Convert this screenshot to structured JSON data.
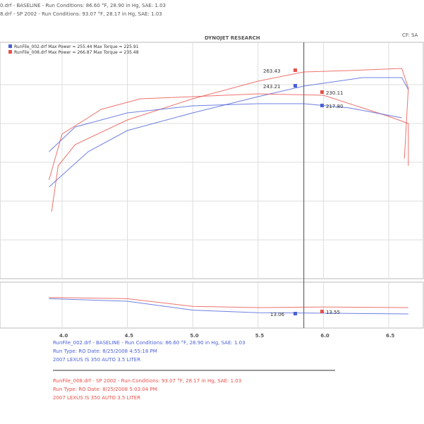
{
  "header": {
    "line1": "0.drf - BASELINE  -  Run Conditions: 86.60 °F, 28.90 in Hg, SAE: 1.03",
    "line2": "8.drf - SP 2002  -  Run Conditions: 93.07 °F, 28.17 in Hg, SAE: 1.03",
    "title": "DYNOJET RESEARCH",
    "corner": "CF: SA"
  },
  "chart_data": {
    "type": "line",
    "title": "DYNOJET RESEARCH",
    "xlabel": "",
    "ylabel": "",
    "x_ticks": [
      "4.0",
      "4.5",
      "5.0",
      "5.5",
      "6.0",
      "6.5"
    ],
    "xlim": [
      3.85,
      6.7
    ],
    "grid": true,
    "cursor_rpm": 5.85,
    "legend": [
      {
        "text": "RunFile_002.drf Max Power = 255.44    Max Torque = 225.91",
        "color": "#4a60d8"
      },
      {
        "text": "RunFile_008.drf Max Power = 266.87    Max Torque = 235.48",
        "color": "#e8504a"
      }
    ],
    "series": [
      {
        "color": "#e8504a",
        "points": [
          [
            3.92,
            65
          ],
          [
            3.97,
            130
          ],
          [
            4.1,
            160
          ],
          [
            4.5,
            195
          ],
          [
            5.0,
            225
          ],
          [
            5.5,
            250
          ],
          [
            5.85,
            263
          ],
          [
            6.2,
            265
          ],
          [
            6.6,
            268
          ],
          [
            6.65,
            240
          ],
          [
            6.62,
            140
          ]
        ]
      },
      {
        "color": "#4a60d8",
        "points": [
          [
            3.9,
            100
          ],
          [
            4.2,
            150
          ],
          [
            4.5,
            180
          ],
          [
            5.0,
            205
          ],
          [
            5.5,
            228
          ],
          [
            5.85,
            243
          ],
          [
            6.3,
            255
          ],
          [
            6.6,
            255
          ],
          [
            6.65,
            238
          ]
        ]
      },
      {
        "color": "#e8504a",
        "points": [
          [
            3.9,
            110
          ],
          [
            4.0,
            175
          ],
          [
            4.3,
            210
          ],
          [
            4.6,
            225
          ],
          [
            5.0,
            228
          ],
          [
            5.5,
            232
          ],
          [
            6.0,
            230
          ],
          [
            6.5,
            200
          ],
          [
            6.65,
            190
          ],
          [
            6.65,
            130
          ]
        ]
      },
      {
        "color": "#4a60d8",
        "points": [
          [
            3.9,
            150
          ],
          [
            4.1,
            185
          ],
          [
            4.5,
            205
          ],
          [
            5.0,
            215
          ],
          [
            5.5,
            218
          ],
          [
            5.85,
            218
          ],
          [
            6.2,
            212
          ],
          [
            6.6,
            198
          ]
        ]
      }
    ],
    "cursor_labels": [
      {
        "text": "263.43",
        "color": "#e8504a",
        "value": 263.43
      },
      {
        "text": "243.21",
        "color": "#4a60d8",
        "value": 243.21
      },
      {
        "text": "230.11",
        "color": "#e8504a",
        "value": 230.11
      },
      {
        "text": "217.80",
        "color": "#4a60d8",
        "value": 217.8
      }
    ],
    "lower_panel": {
      "series": [
        {
          "color": "#4a60d8",
          "points": [
            [
              3.9,
              14.2
            ],
            [
              4.5,
              14.0
            ],
            [
              5.0,
              13.3
            ],
            [
              5.5,
              13.1
            ],
            [
              6.0,
              13.06
            ],
            [
              6.65,
              13.0
            ]
          ]
        },
        {
          "color": "#e8504a",
          "points": [
            [
              3.9,
              14.3
            ],
            [
              4.5,
              14.2
            ],
            [
              5.0,
              13.6
            ],
            [
              5.5,
              13.5
            ],
            [
              6.0,
              13.55
            ],
            [
              6.65,
              13.5
            ]
          ]
        }
      ],
      "labels": [
        {
          "text": "13.06",
          "color": "#4a60d8"
        },
        {
          "text": "13.55",
          "color": "#e8504a"
        }
      ]
    }
  },
  "footer": {
    "blue": [
      "RunFile_002.drf - BASELINE  -  Run Conditions: 86.60 °F, 28.90 in Hg, SAE: 1.03",
      "Run Type: RO  Date: 8/25/2008 4:55:18 PM",
      "2007 LEXUS IS 350 AUTO 3.5 LITER"
    ],
    "red": [
      "RunFile_008.drf - SP 2002  -  Run Conditions: 93.07 °F, 28.17 in Hg, SAE: 1.03",
      "Run Type: RO  Date: 8/25/2008 5:03:04 PM",
      "2007 LEXUS IS 350 AUTO 3.5 LITER"
    ]
  }
}
